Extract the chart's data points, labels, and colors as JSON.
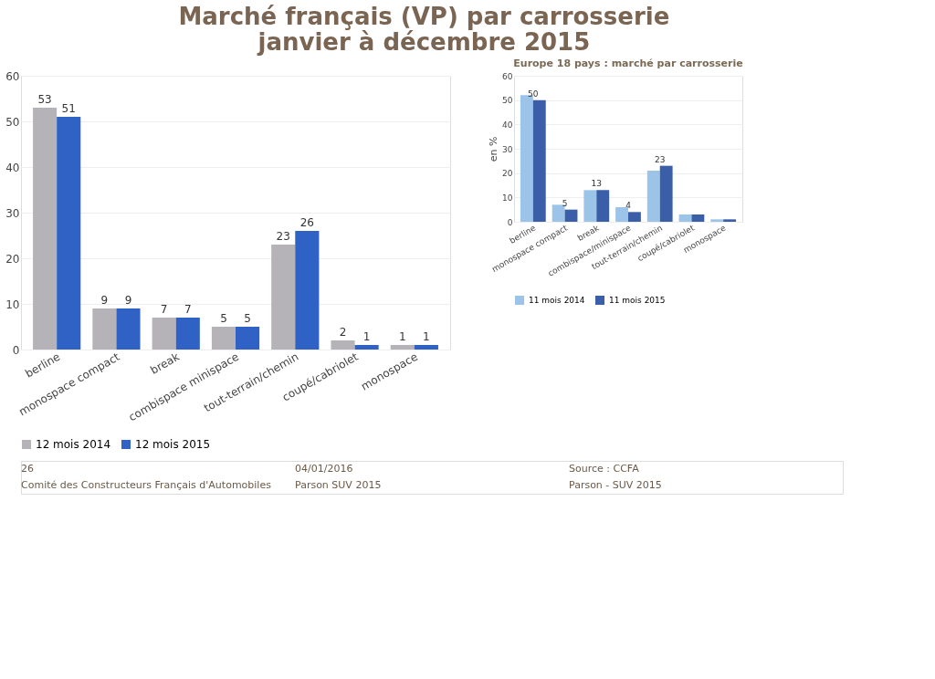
{
  "chart_data": [
    {
      "type": "bar",
      "title": "Marché français (VP) par carrosserie\njanvier à décembre 2015",
      "categories": [
        "berline",
        "monospace compact",
        "break",
        "combispace minispace",
        "tout-terrain/chemin",
        "coupé/cabriolet",
        "monospace"
      ],
      "series": [
        {
          "name": "12 mois 2014",
          "color": "#b5b3b7",
          "values": [
            53,
            9,
            7,
            5,
            23,
            2,
            1
          ]
        },
        {
          "name": "12 mois 2015",
          "color": "#2f62c4",
          "values": [
            51,
            9,
            7,
            5,
            26,
            1,
            1
          ]
        }
      ],
      "ylim": [
        0,
        60
      ],
      "yticks": [
        0,
        10,
        20,
        30,
        40,
        50,
        60
      ],
      "grid": "y",
      "legend": "bottom",
      "data_labels": true,
      "annotations": [
        "26",
        "04/01/2016",
        "Source : CCFA",
        "Comité des Constructeurs Français d'Automobiles",
        "Parson SUV 2015",
        "Parson - SUV 2015"
      ]
    },
    {
      "type": "bar",
      "title": "Europe 18 pays : marché par carrosserie",
      "ylabel": "en %",
      "categories": [
        "berline",
        "monospace compact",
        "break",
        "combispace/minispace",
        "tout-terrain/chemin",
        "coupé/cabriolet",
        "monospace"
      ],
      "series": [
        {
          "name": "11 mois 2014",
          "color": "#9cc3e8",
          "values": [
            52,
            7,
            13,
            6,
            21,
            3,
            1
          ]
        },
        {
          "name": "11 mois 2015",
          "color": "#3a5fa8",
          "values": [
            50,
            5,
            13,
            4,
            23,
            3,
            1
          ],
          "value_labels": [
            "50",
            "5",
            "13",
            "4",
            "23",
            null,
            null
          ]
        }
      ],
      "ylim": [
        0,
        60
      ],
      "yticks": [
        0,
        10,
        20,
        30,
        40,
        50,
        60
      ],
      "grid": "y",
      "legend": "bottom"
    }
  ]
}
